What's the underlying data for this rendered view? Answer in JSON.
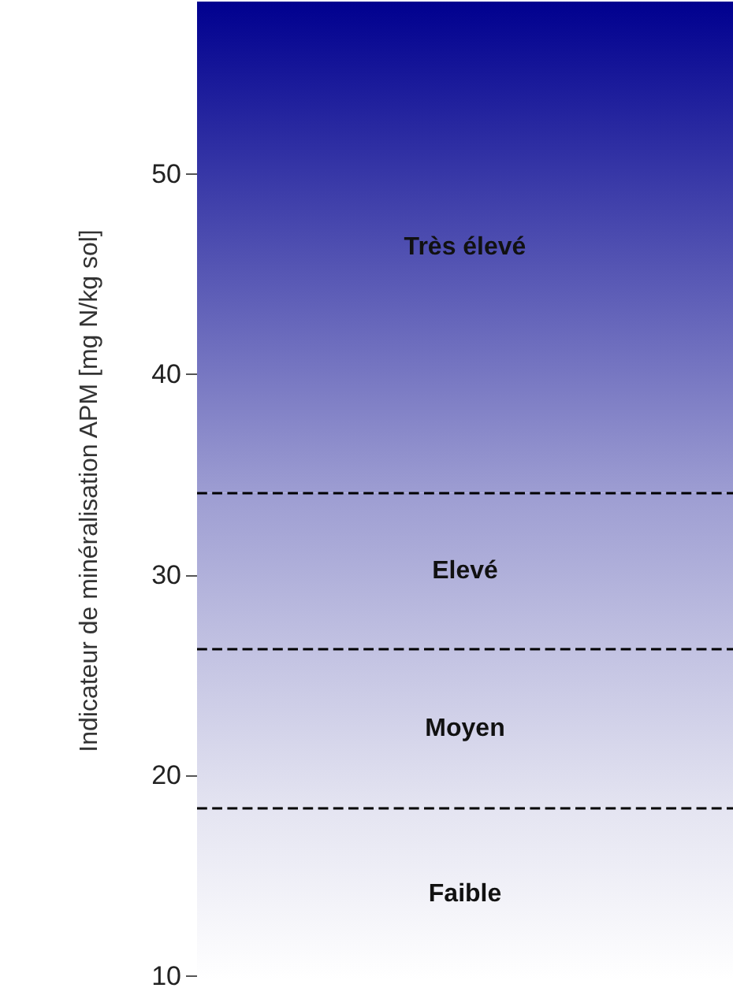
{
  "chart_data": {
    "type": "bar",
    "ylabel": "Indicateur de minéralisation APM [mg N/kg sol]",
    "categories": [
      null
    ],
    "values": [
      null
    ],
    "bands": [
      {
        "axis": "y",
        "from": 9.8,
        "to": 18.4,
        "label": "Faible",
        "color": "#e4e4f1"
      },
      {
        "axis": "y",
        "from": 18.4,
        "to": 26.3,
        "label": "Moyen",
        "color": "#c2c2e2"
      },
      {
        "axis": "y",
        "from": 26.3,
        "to": 34.1,
        "label": "Elevé",
        "color": "#9d9dd2"
      },
      {
        "axis": "y",
        "from": 34.1,
        "to": 58.6,
        "label": "Très élevé",
        "color": "#00008f"
      }
    ],
    "ylim": [
      9.8,
      58.6
    ],
    "yticks": [
      10,
      20,
      30,
      40,
      50
    ],
    "tick_labels": "y",
    "ref_lines": [
      {
        "axis": "y",
        "value": 18.4,
        "line_style": "dashed",
        "color": "#000000"
      },
      {
        "axis": "y",
        "value": 26.3,
        "line_style": "dashed",
        "color": "#000000"
      },
      {
        "axis": "y",
        "value": 34.1,
        "line_style": "dashed",
        "color": "#000000"
      }
    ]
  }
}
